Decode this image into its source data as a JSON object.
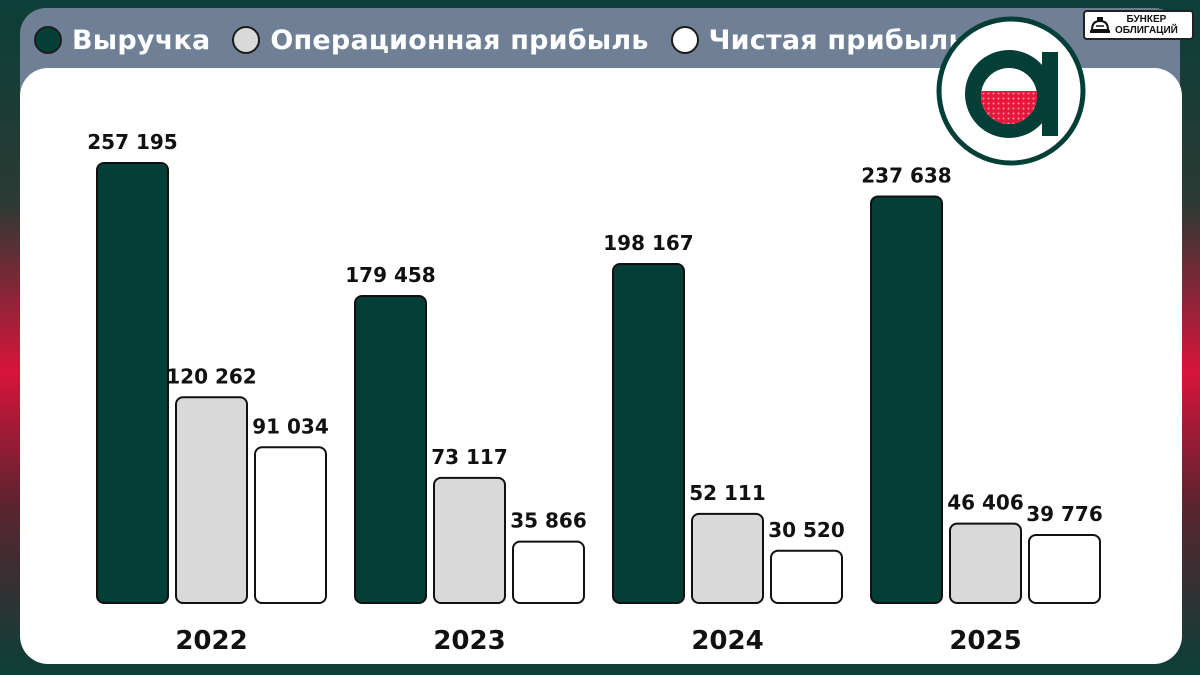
{
  "legend": {
    "items": [
      {
        "label": "Выручка",
        "color": "#043f37"
      },
      {
        "label": "Операционная прибыль",
        "color": "#d9d9d9"
      },
      {
        "label": "Чистая прибыль",
        "color": "#ffffff"
      }
    ]
  },
  "badge": {
    "line1": "БУНКЕР",
    "line2": "ОБЛИГАЦИЙ",
    "icon": "bunker-icon"
  },
  "logo": {
    "icon": "company-logo-icon",
    "ring_color": "#043f37",
    "accent_color": "#e8163b"
  },
  "chart_data": {
    "type": "bar",
    "categories": [
      "2022",
      "2023",
      "2024",
      "2025"
    ],
    "series": [
      {
        "name": "Выручка",
        "color": "#043f37",
        "values": [
          257195,
          179458,
          198167,
          237638
        ],
        "labels": [
          "257 195",
          "179 458",
          "198 167",
          "237 638"
        ]
      },
      {
        "name": "Операционная прибыль",
        "color": "#d9d9d9",
        "values": [
          120262,
          73117,
          52111,
          46406
        ],
        "labels": [
          "120 262",
          "73 117",
          "52 111",
          "46 406"
        ]
      },
      {
        "name": "Чистая прибыль",
        "color": "#ffffff",
        "values": [
          91034,
          35866,
          30520,
          39776
        ],
        "labels": [
          "91 034",
          "35 866",
          "30 520",
          "39 776"
        ]
      }
    ],
    "ylim": [
      0,
      257195
    ],
    "grid": false,
    "legend_position": "top-left",
    "title": "",
    "xlabel": "",
    "ylabel": ""
  }
}
